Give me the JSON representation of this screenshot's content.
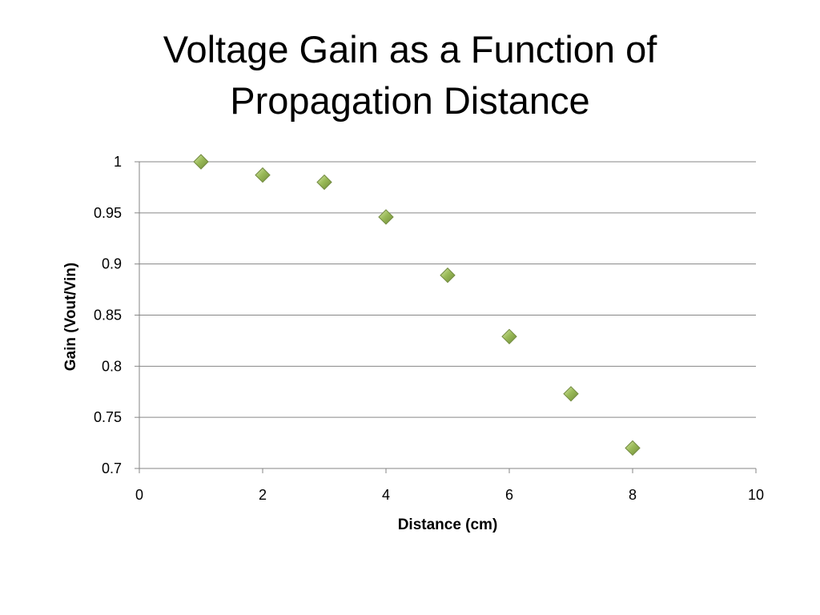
{
  "slide": {
    "title_line1": "Voltage Gain as a Function of",
    "title_line2": "Propagation Distance"
  },
  "chart_data": {
    "type": "scatter",
    "title": "Voltage Gain as a Function of Propagation Distance",
    "xlabel": "Distance (cm)",
    "ylabel": "Gain (Vout/Vin)",
    "xlim": [
      0,
      10
    ],
    "ylim": [
      0.7,
      1
    ],
    "xticks": [
      0,
      2,
      4,
      6,
      8,
      10
    ],
    "yticks": [
      0.7,
      0.75,
      0.8,
      0.85,
      0.9,
      0.95,
      1
    ],
    "grid": "horizontal",
    "legend": "none",
    "series": [
      {
        "x": [
          1,
          2,
          3,
          4,
          5,
          6,
          7,
          8
        ],
        "y": [
          1.0,
          0.987,
          0.98,
          0.946,
          0.889,
          0.829,
          0.773,
          0.72
        ]
      }
    ],
    "colors": {
      "marker_fill": "#9bbb59",
      "marker_highlight": "#cfe39a",
      "marker_edge": "#71893f",
      "gridline": "#868686",
      "axis": "#868686"
    }
  }
}
